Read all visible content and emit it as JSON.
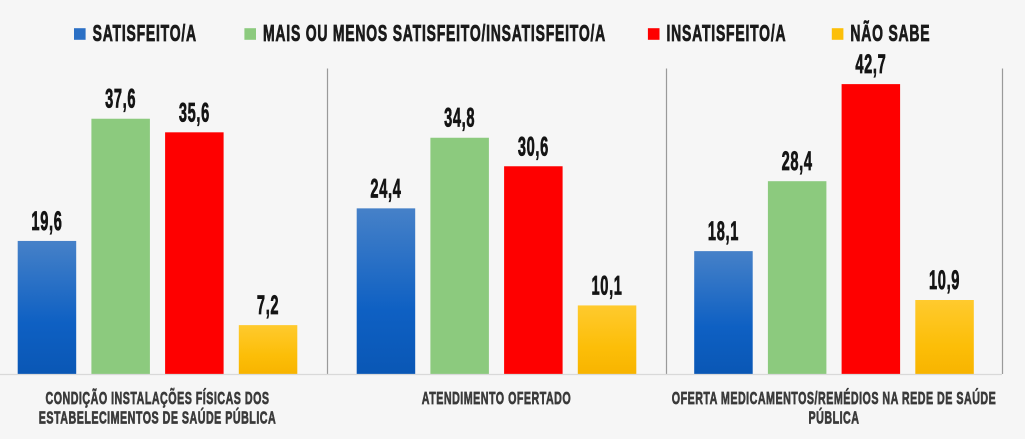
{
  "canvas": {
    "background": "#f6f6f6"
  },
  "chart_data": {
    "type": "bar",
    "title": "",
    "xlabel": "",
    "ylabel": "",
    "ylim": [
      0,
      45
    ],
    "grid": "category-separators-only",
    "legend_position": "top",
    "decimal_separator": ",",
    "categories": [
      "CONDIÇÃO INSTALAÇÕES FÍSICAS DOS ESTABELECIMENTOS DE SAÚDE PÚBLICA",
      "ATENDIMENTO OFERTADO",
      "OFERTA MEDICAMENTOS/REMÉDIOS NA REDE DE SAÚDE PÚBLICA"
    ],
    "category_label_lines": [
      [
        "CONDIÇÃO INSTALAÇÕES FÍSICAS DOS",
        "ESTABELECIMENTOS DE SAÚDE PÚBLICA"
      ],
      [
        "ATENDIMENTO OFERTADO"
      ],
      [
        "OFERTA MEDICAMENTOS/REMÉDIOS NA REDE DE SAÚDE",
        "PÚBLICA"
      ]
    ],
    "series": [
      {
        "name": "SATISFEITO/A",
        "values": [
          19.6,
          24.4,
          18.1
        ],
        "color": "#2B70C5",
        "gradient": [
          "#4681C8",
          "#0E60C3",
          "#0A57B5"
        ]
      },
      {
        "name": "MAIS OU MENOS SATISFEITO/INSATISFEITO/A",
        "values": [
          37.6,
          34.8,
          28.4
        ],
        "color": "#8CCA7E",
        "gradient": null
      },
      {
        "name": "INSATISFEITO/A",
        "values": [
          35.6,
          30.6,
          42.7
        ],
        "color": "#FE0000",
        "gradient": null
      },
      {
        "name": "NÃO SABE",
        "values": [
          7.2,
          10.1,
          10.9
        ],
        "color": "#FCBF08",
        "gradient": [
          "#FFCA2E",
          "#FCBE08",
          "#F8B400"
        ]
      }
    ],
    "colors": {
      "separator_line": "#9a9a9a",
      "axis_line": "#d9d9d9",
      "value_label": "#141414",
      "category_label": "#3a3a3a",
      "legend_label": "#1a1a1a"
    }
  }
}
